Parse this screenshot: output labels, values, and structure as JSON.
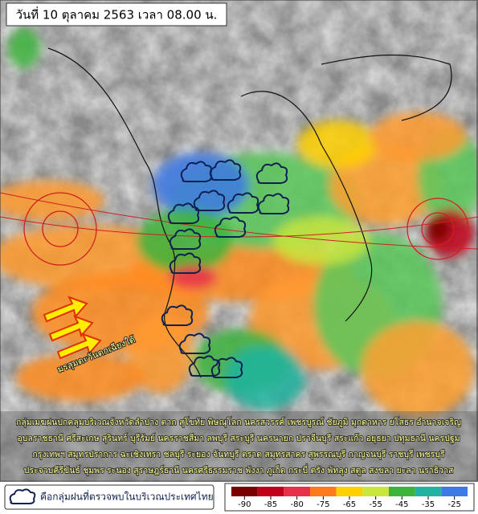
{
  "header": {
    "title": "วันที่ 10 ตุลาคม 2563 เวลา 08.00 น."
  },
  "map": {
    "monsoon_label": "มรสุมตะวันตกเฉียงใต้",
    "provinces": [
      "กลุ่มเมฆฝนปกคลุมบริเวณจังหวัดลำปาง ตาก สุโขทัย พิษณุโลก นครสวรรค์ เพชรบูรณ์ ชัยภูมิ มุกดาหาร ยโสธร อำนาจเจริญ",
      "อุบลราชธานี ศรีสะเกษ สุรินทร์ บุรีรัมย์ นครราชสีมา ลพบุรี สระบุรี นครนายก ปราจีนบุรี สระแก้ว อยุธยา ปทุมธานี นครปฐม",
      "กรุงเทพฯ สมุทรปราการ ฉะเชิงเทรา ชลบุรี ระยอง จันทบุรี ตราด สมุทรสาคร สุพรรณบุรี กาญจนบุรี ราชบุรี เพชรบุรี",
      "ประจวบคีรีขันธ์ ชุมพร ระนอง สุราษฎร์ธานี นครศรีธรรมราช พังงา ภูเก็ต กระบี่ ตรัง พัทลุง สตูล สงขลา ยะลา นราธิวาส"
    ]
  },
  "legend": {
    "rain_cluster": "คือกลุ่มฝนที่ตรวจพบในบริเวณประเทศไทย"
  },
  "color_scale": {
    "ticks": [
      -90,
      -85,
      -80,
      -75,
      -65,
      -55,
      -45,
      -35,
      -25
    ],
    "colors": [
      "#7a0000",
      "#c0001a",
      "#e8304a",
      "#ff7a1a",
      "#ffd000",
      "#c8e63c",
      "#3cb43c",
      "#20b4a0",
      "#3c78e6"
    ]
  }
}
